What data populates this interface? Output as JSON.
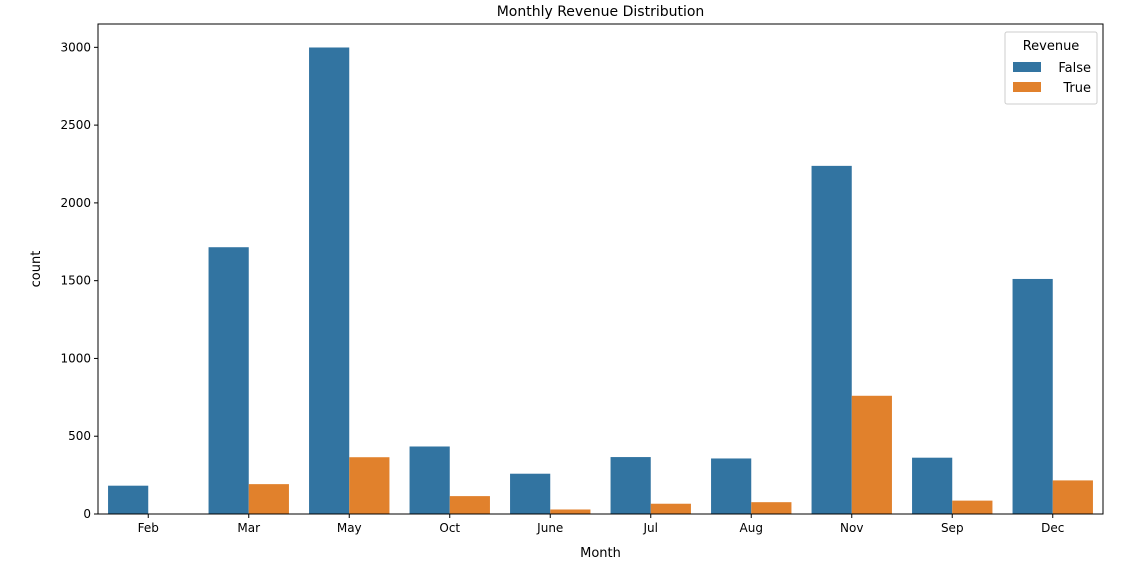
{
  "chart_data": {
    "type": "bar",
    "title": "Monthly Revenue Distribution",
    "xlabel": "Month",
    "ylabel": "count",
    "categories": [
      "Feb",
      "Mar",
      "May",
      "Oct",
      "June",
      "Jul",
      "Aug",
      "Nov",
      "Sep",
      "Dec"
    ],
    "series": [
      {
        "name": "False",
        "color": "#3274a1",
        "values": [
          182,
          1715,
          2999,
          434,
          259,
          366,
          357,
          2238,
          362,
          1511
        ]
      },
      {
        "name": "True",
        "color": "#e1812c",
        "values": [
          3,
          192,
          365,
          115,
          29,
          66,
          76,
          760,
          86,
          216
        ]
      }
    ],
    "ylim": [
      0,
      3150
    ],
    "yticks": [
      0,
      500,
      1000,
      1500,
      2000,
      2500,
      3000
    ],
    "legend": {
      "title": "Revenue",
      "placement": "top-right"
    },
    "grid": false
  }
}
